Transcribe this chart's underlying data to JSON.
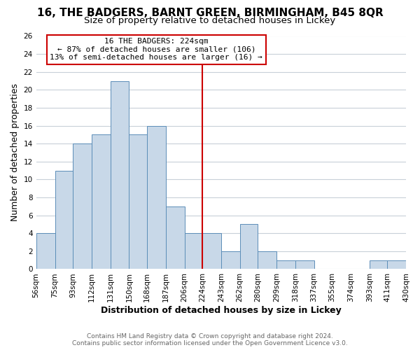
{
  "title": "16, THE BADGERS, BARNT GREEN, BIRMINGHAM, B45 8QR",
  "subtitle": "Size of property relative to detached houses in Lickey",
  "xlabel": "Distribution of detached houses by size in Lickey",
  "ylabel": "Number of detached properties",
  "bar_color": "#c8d8e8",
  "bar_edge_color": "#5b8db8",
  "background_color": "#ffffff",
  "grid_color": "#c8d0d8",
  "bin_edges": [
    56,
    75,
    93,
    112,
    131,
    150,
    168,
    187,
    206,
    224,
    243,
    262,
    280,
    299,
    318,
    337,
    355,
    374,
    393,
    411,
    430
  ],
  "bar_heights": [
    4,
    11,
    14,
    15,
    21,
    15,
    16,
    7,
    4,
    4,
    2,
    5,
    2,
    1,
    1,
    0,
    0,
    0,
    1,
    1
  ],
  "tick_labels": [
    "56sqm",
    "75sqm",
    "93sqm",
    "112sqm",
    "131sqm",
    "150sqm",
    "168sqm",
    "187sqm",
    "206sqm",
    "224sqm",
    "243sqm",
    "262sqm",
    "280sqm",
    "299sqm",
    "318sqm",
    "337sqm",
    "355sqm",
    "374sqm",
    "393sqm",
    "411sqm",
    "430sqm"
  ],
  "vline_x": 224,
  "vline_color": "#cc0000",
  "annotation_title": "16 THE BADGERS: 224sqm",
  "annotation_line1": "← 87% of detached houses are smaller (106)",
  "annotation_line2": "13% of semi-detached houses are larger (16) →",
  "annotation_box_color": "#ffffff",
  "annotation_box_edge": "#cc0000",
  "ylim": [
    0,
    26
  ],
  "yticks": [
    0,
    2,
    4,
    6,
    8,
    10,
    12,
    14,
    16,
    18,
    20,
    22,
    24,
    26
  ],
  "footer1": "Contains HM Land Registry data © Crown copyright and database right 2024.",
  "footer2": "Contains public sector information licensed under the Open Government Licence v3.0.",
  "title_fontsize": 11,
  "subtitle_fontsize": 9.5,
  "axis_label_fontsize": 9,
  "tick_fontsize": 7.5,
  "footer_fontsize": 6.5,
  "annotation_fontsize": 8
}
